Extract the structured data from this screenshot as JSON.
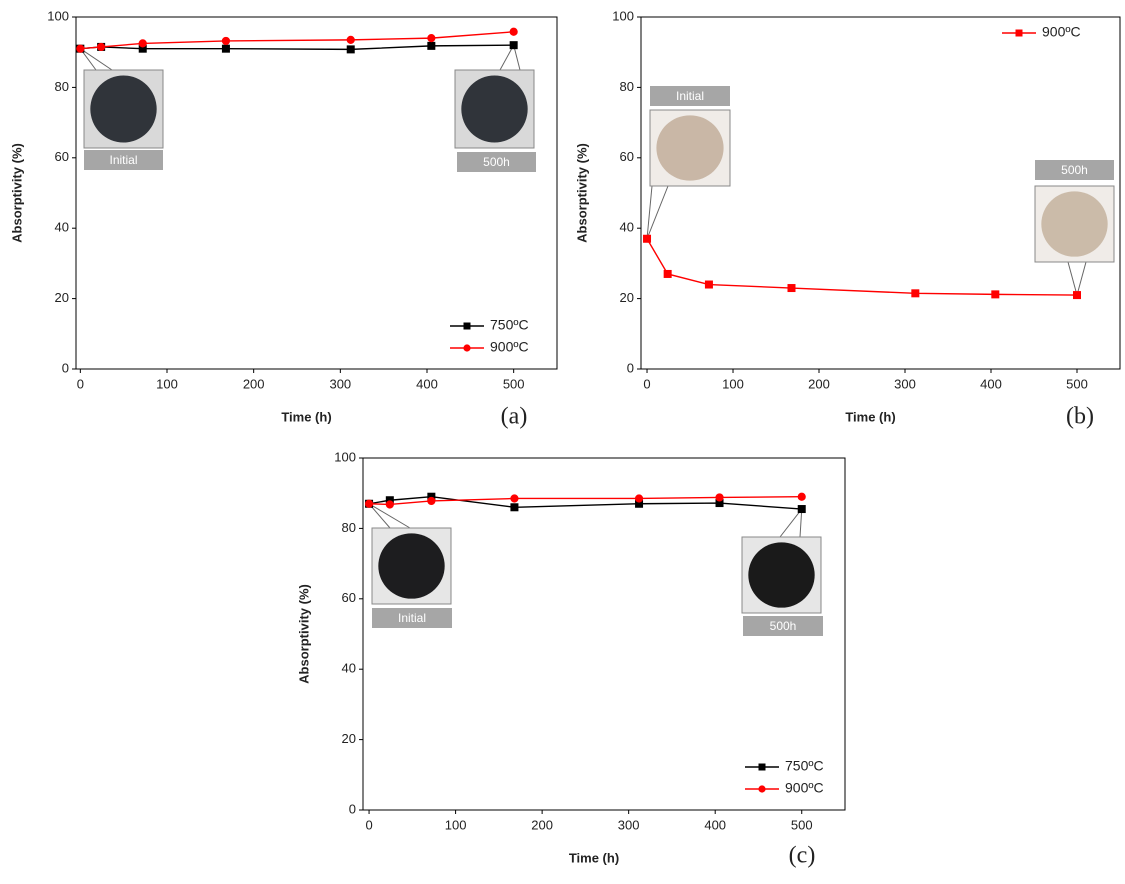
{
  "chart_data": [
    {
      "type": "line",
      "label": "(a)",
      "x_label": "Time (h)",
      "y_label": "Absorptivity (%)",
      "x": [
        0,
        24,
        72,
        168,
        312,
        405,
        500
      ],
      "series": [
        {
          "name": "750ºC",
          "color": "#000000",
          "marker": "square",
          "values": [
            91,
            91.5,
            91,
            91,
            90.8,
            91.8,
            92
          ]
        },
        {
          "name": "900ºC",
          "color": "#ff0000",
          "marker": "circle",
          "values": [
            91,
            91.5,
            92.5,
            93.2,
            93.5,
            94,
            95.8
          ]
        }
      ],
      "xlim": [
        -5,
        550
      ],
      "xticks": [
        0,
        100,
        200,
        300,
        400,
        500
      ],
      "ylim": [
        0,
        100
      ],
      "yticks": [
        0,
        20,
        40,
        60,
        80,
        100
      ],
      "legend": "lower right",
      "annotations": [
        "Initial",
        "500h"
      ]
    },
    {
      "type": "line",
      "label": "(b)",
      "x_label": "Time (h)",
      "y_label": "Absorptivity (%)",
      "x": [
        0,
        24,
        72,
        168,
        312,
        405,
        500
      ],
      "series": [
        {
          "name": "900ºC",
          "color": "#ff0000",
          "marker": "square",
          "values": [
            37,
            27,
            24,
            23,
            21.5,
            21.2,
            21
          ]
        }
      ],
      "xlim": [
        -7,
        550
      ],
      "xticks": [
        0,
        100,
        200,
        300,
        400,
        500
      ],
      "ylim": [
        0,
        100
      ],
      "yticks": [
        0,
        20,
        40,
        60,
        80,
        100
      ],
      "legend": "upper right",
      "annotations": [
        "Initial",
        "500h"
      ]
    },
    {
      "type": "line",
      "label": "(c)",
      "x_label": "Time (h)",
      "y_label": "Absorptivity (%)",
      "x": [
        0,
        24,
        72,
        168,
        312,
        405,
        500
      ],
      "series": [
        {
          "name": "750ºC",
          "color": "#000000",
          "marker": "square",
          "values": [
            87,
            88,
            89,
            86,
            87,
            87.2,
            85.5
          ]
        },
        {
          "name": "900ºC",
          "color": "#ff0000",
          "marker": "circle",
          "values": [
            87,
            86.8,
            87.8,
            88.5,
            88.5,
            88.8,
            89
          ]
        }
      ],
      "xlim": [
        -7,
        550
      ],
      "xticks": [
        0,
        100,
        200,
        300,
        400,
        500
      ],
      "ylim": [
        0,
        100
      ],
      "yticks": [
        0,
        20,
        40,
        60,
        80,
        100
      ],
      "legend": "lower right",
      "annotations": [
        "Initial",
        "500h"
      ]
    }
  ]
}
